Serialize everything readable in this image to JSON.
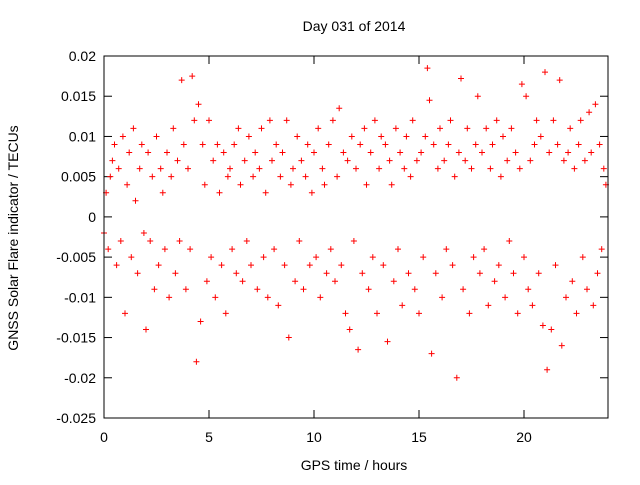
{
  "chart_data": {
    "type": "scatter",
    "title": "Day 031 of 2014",
    "xlabel": "GPS time / hours",
    "ylabel": "GNSS Solar Flare indicator / TECUs",
    "xlim": [
      0,
      24
    ],
    "ylim": [
      -0.025,
      0.02
    ],
    "x_ticks": [
      {
        "value": 0,
        "label": "0"
      },
      {
        "value": 5,
        "label": "5"
      },
      {
        "value": 10,
        "label": "10"
      },
      {
        "value": 15,
        "label": "15"
      },
      {
        "value": 20,
        "label": "20"
      }
    ],
    "y_ticks": [
      {
        "value": -0.025,
        "label": "-0.025"
      },
      {
        "value": -0.02,
        "label": "-0.02"
      },
      {
        "value": -0.015,
        "label": "-0.015"
      },
      {
        "value": -0.01,
        "label": "-0.01"
      },
      {
        "value": -0.005,
        "label": "-0.005"
      },
      {
        "value": 0,
        "label": "0"
      },
      {
        "value": 0.005,
        "label": "0.005"
      },
      {
        "value": 0.01,
        "label": "0.01"
      },
      {
        "value": 0.015,
        "label": "0.015"
      },
      {
        "value": 0.02,
        "label": "0.02"
      }
    ],
    "marker": "+",
    "grid": false,
    "legend": "none",
    "colors": {
      "points": "#ff0000",
      "axes": "#000000"
    },
    "series": [
      {
        "points": [
          [
            0.0,
            -0.002
          ],
          [
            0.1,
            0.003
          ],
          [
            0.2,
            -0.004
          ],
          [
            0.3,
            0.005
          ],
          [
            0.4,
            0.007
          ],
          [
            0.5,
            0.009
          ],
          [
            0.6,
            -0.006
          ],
          [
            0.7,
            0.006
          ],
          [
            0.8,
            -0.003
          ],
          [
            0.9,
            0.01
          ],
          [
            1.0,
            -0.012
          ],
          [
            1.1,
            0.004
          ],
          [
            1.2,
            0.008
          ],
          [
            1.3,
            -0.005
          ],
          [
            1.4,
            0.011
          ],
          [
            1.5,
            0.002
          ],
          [
            1.6,
            -0.007
          ],
          [
            1.7,
            0.006
          ],
          [
            1.8,
            0.009
          ],
          [
            1.9,
            -0.002
          ],
          [
            2.0,
            -0.014
          ],
          [
            2.1,
            0.008
          ],
          [
            2.2,
            -0.003
          ],
          [
            2.3,
            0.005
          ],
          [
            2.4,
            -0.009
          ],
          [
            2.5,
            0.01
          ],
          [
            2.6,
            -0.006
          ],
          [
            2.7,
            0.006
          ],
          [
            2.8,
            0.003
          ],
          [
            2.9,
            -0.004
          ],
          [
            3.0,
            0.008
          ],
          [
            3.1,
            -0.01
          ],
          [
            3.2,
            0.005
          ],
          [
            3.3,
            0.011
          ],
          [
            3.4,
            -0.007
          ],
          [
            3.5,
            0.007
          ],
          [
            3.6,
            -0.003
          ],
          [
            3.7,
            0.017
          ],
          [
            3.8,
            0.009
          ],
          [
            3.9,
            -0.009
          ],
          [
            4.0,
            0.006
          ],
          [
            4.1,
            -0.004
          ],
          [
            4.2,
            0.0175
          ],
          [
            4.3,
            0.012
          ],
          [
            4.4,
            -0.018
          ],
          [
            4.5,
            0.014
          ],
          [
            4.6,
            -0.013
          ],
          [
            4.7,
            0.009
          ],
          [
            4.8,
            0.004
          ],
          [
            4.9,
            -0.008
          ],
          [
            5.0,
            0.012
          ],
          [
            5.1,
            -0.005
          ],
          [
            5.2,
            0.007
          ],
          [
            5.3,
            -0.01
          ],
          [
            5.4,
            0.009
          ],
          [
            5.5,
            0.003
          ],
          [
            5.6,
            -0.006
          ],
          [
            5.7,
            0.008
          ],
          [
            5.8,
            -0.012
          ],
          [
            5.9,
            0.005
          ],
          [
            6.0,
            0.006
          ],
          [
            6.1,
            -0.004
          ],
          [
            6.2,
            0.009
          ],
          [
            6.3,
            -0.007
          ],
          [
            6.4,
            0.011
          ],
          [
            6.5,
            0.004
          ],
          [
            6.6,
            -0.008
          ],
          [
            6.7,
            0.007
          ],
          [
            6.8,
            -0.003
          ],
          [
            6.9,
            0.01
          ],
          [
            7.0,
            -0.006
          ],
          [
            7.1,
            0.005
          ],
          [
            7.2,
            0.008
          ],
          [
            7.3,
            -0.009
          ],
          [
            7.4,
            0.006
          ],
          [
            7.5,
            0.011
          ],
          [
            7.6,
            -0.005
          ],
          [
            7.7,
            0.003
          ],
          [
            7.8,
            -0.01
          ],
          [
            7.9,
            0.012
          ],
          [
            8.0,
            0.007
          ],
          [
            8.1,
            -0.004
          ],
          [
            8.2,
            0.009
          ],
          [
            8.3,
            -0.011
          ],
          [
            8.4,
            0.005
          ],
          [
            8.5,
            0.008
          ],
          [
            8.6,
            -0.006
          ],
          [
            8.7,
            0.012
          ],
          [
            8.8,
            -0.015
          ],
          [
            8.9,
            0.004
          ],
          [
            9.0,
            0.006
          ],
          [
            9.1,
            -0.008
          ],
          [
            9.2,
            0.01
          ],
          [
            9.3,
            -0.003
          ],
          [
            9.4,
            0.007
          ],
          [
            9.5,
            -0.009
          ],
          [
            9.6,
            0.005
          ],
          [
            9.7,
            0.009
          ],
          [
            9.8,
            -0.006
          ],
          [
            9.9,
            0.003
          ],
          [
            10.0,
            0.008
          ],
          [
            10.1,
            -0.005
          ],
          [
            10.2,
            0.011
          ],
          [
            10.3,
            -0.01
          ],
          [
            10.4,
            0.006
          ],
          [
            10.5,
            0.004
          ],
          [
            10.6,
            -0.007
          ],
          [
            10.7,
            0.009
          ],
          [
            10.8,
            -0.004
          ],
          [
            10.9,
            0.012
          ],
          [
            11.0,
            -0.008
          ],
          [
            11.1,
            0.005
          ],
          [
            11.2,
            0.0135
          ],
          [
            11.3,
            -0.006
          ],
          [
            11.4,
            0.008
          ],
          [
            11.5,
            -0.012
          ],
          [
            11.6,
            0.007
          ],
          [
            11.7,
            -0.014
          ],
          [
            11.8,
            0.01
          ],
          [
            11.9,
            -0.003
          ],
          [
            12.0,
            0.006
          ],
          [
            12.1,
            -0.0165
          ],
          [
            12.2,
            0.009
          ],
          [
            12.3,
            -0.007
          ],
          [
            12.4,
            0.011
          ],
          [
            12.5,
            0.004
          ],
          [
            12.6,
            -0.009
          ],
          [
            12.7,
            0.008
          ],
          [
            12.8,
            -0.005
          ],
          [
            12.9,
            0.012
          ],
          [
            13.0,
            -0.012
          ],
          [
            13.1,
            0.006
          ],
          [
            13.2,
            0.01
          ],
          [
            13.3,
            -0.006
          ],
          [
            13.4,
            0.009
          ],
          [
            13.5,
            -0.0155
          ],
          [
            13.6,
            0.007
          ],
          [
            13.7,
            0.004
          ],
          [
            13.8,
            -0.008
          ],
          [
            13.9,
            0.011
          ],
          [
            14.0,
            -0.004
          ],
          [
            14.1,
            0.008
          ],
          [
            14.2,
            -0.011
          ],
          [
            14.3,
            0.006
          ],
          [
            14.4,
            0.01
          ],
          [
            14.5,
            -0.007
          ],
          [
            14.6,
            0.005
          ],
          [
            14.7,
            0.012
          ],
          [
            14.8,
            -0.009
          ],
          [
            14.9,
            0.007
          ],
          [
            15.0,
            -0.012
          ],
          [
            15.1,
            0.008
          ],
          [
            15.2,
            -0.005
          ],
          [
            15.3,
            0.01
          ],
          [
            15.4,
            0.0185
          ],
          [
            15.5,
            0.0145
          ],
          [
            15.6,
            -0.017
          ],
          [
            15.7,
            0.009
          ],
          [
            15.8,
            -0.007
          ],
          [
            15.9,
            0.006
          ],
          [
            16.0,
            0.011
          ],
          [
            16.1,
            -0.01
          ],
          [
            16.2,
            0.007
          ],
          [
            16.3,
            -0.004
          ],
          [
            16.4,
            0.009
          ],
          [
            16.5,
            0.012
          ],
          [
            16.6,
            -0.006
          ],
          [
            16.7,
            0.005
          ],
          [
            16.8,
            -0.02
          ],
          [
            16.9,
            0.008
          ],
          [
            17.0,
            0.0172
          ],
          [
            17.1,
            -0.009
          ],
          [
            17.2,
            0.007
          ],
          [
            17.3,
            0.011
          ],
          [
            17.4,
            -0.012
          ],
          [
            17.5,
            0.006
          ],
          [
            17.6,
            -0.005
          ],
          [
            17.7,
            0.009
          ],
          [
            17.8,
            0.015
          ],
          [
            17.9,
            -0.007
          ],
          [
            18.0,
            0.008
          ],
          [
            18.1,
            -0.004
          ],
          [
            18.2,
            0.011
          ],
          [
            18.3,
            -0.011
          ],
          [
            18.4,
            0.006
          ],
          [
            18.5,
            0.009
          ],
          [
            18.6,
            -0.008
          ],
          [
            18.7,
            0.012
          ],
          [
            18.8,
            -0.006
          ],
          [
            18.9,
            0.005
          ],
          [
            19.0,
            0.01
          ],
          [
            19.1,
            -0.01
          ],
          [
            19.2,
            0.007
          ],
          [
            19.3,
            -0.003
          ],
          [
            19.4,
            0.011
          ],
          [
            19.5,
            -0.007
          ],
          [
            19.6,
            0.008
          ],
          [
            19.7,
            -0.012
          ],
          [
            19.8,
            0.006
          ],
          [
            19.9,
            0.0165
          ],
          [
            20.0,
            -0.005
          ],
          [
            20.1,
            0.015
          ],
          [
            20.2,
            -0.009
          ],
          [
            20.3,
            0.007
          ],
          [
            20.4,
            -0.011
          ],
          [
            20.5,
            0.009
          ],
          [
            20.6,
            0.012
          ],
          [
            20.7,
            -0.007
          ],
          [
            20.8,
            0.01
          ],
          [
            20.9,
            -0.0135
          ],
          [
            21.0,
            0.018
          ],
          [
            21.1,
            -0.019
          ],
          [
            21.2,
            0.008
          ],
          [
            21.3,
            -0.014
          ],
          [
            21.4,
            0.012
          ],
          [
            21.5,
            -0.006
          ],
          [
            21.6,
            0.009
          ],
          [
            21.7,
            0.017
          ],
          [
            21.8,
            -0.016
          ],
          [
            21.9,
            0.007
          ],
          [
            22.0,
            -0.01
          ],
          [
            22.1,
            0.008
          ],
          [
            22.2,
            0.011
          ],
          [
            22.3,
            -0.008
          ],
          [
            22.4,
            0.006
          ],
          [
            22.5,
            -0.012
          ],
          [
            22.6,
            0.009
          ],
          [
            22.7,
            0.012
          ],
          [
            22.8,
            -0.005
          ],
          [
            22.9,
            0.007
          ],
          [
            23.0,
            -0.009
          ],
          [
            23.1,
            0.013
          ],
          [
            23.2,
            0.008
          ],
          [
            23.3,
            -0.011
          ],
          [
            23.4,
            0.014
          ],
          [
            23.5,
            -0.007
          ],
          [
            23.6,
            0.009
          ],
          [
            23.7,
            -0.004
          ],
          [
            23.8,
            0.006
          ],
          [
            23.9,
            0.004
          ]
        ]
      }
    ]
  }
}
